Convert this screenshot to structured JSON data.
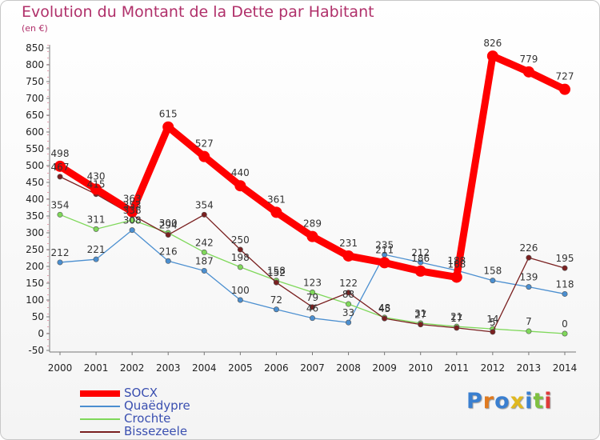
{
  "title": "Evolution du Montant de la Dette par Habitant",
  "subtitle": "(en €)",
  "logo_text": "Proxiti",
  "chart_data": {
    "type": "line",
    "x": [
      "2000",
      "2001",
      "2002",
      "2003",
      "2004",
      "2005",
      "2006",
      "2007",
      "2008",
      "2009",
      "2010",
      "2011",
      "2012",
      "2013",
      "2014"
    ],
    "ylim": [
      -50,
      850
    ],
    "yticks": [
      -50,
      0,
      50,
      100,
      150,
      200,
      250,
      300,
      350,
      400,
      450,
      500,
      550,
      600,
      650,
      700,
      750,
      800,
      850
    ],
    "grid": false,
    "legend_position": "bottom-left",
    "series": [
      {
        "name": "SOCX",
        "color": "#ff0000",
        "values": [
          498,
          430,
          363,
          615,
          527,
          440,
          361,
          289,
          231,
          211,
          186,
          168,
          826,
          779,
          727
        ]
      },
      {
        "name": "Quaëdypre",
        "color": "#4b8fd0",
        "values": [
          212,
          221,
          308,
          216,
          187,
          100,
          72,
          46,
          33,
          235,
          212,
          188,
          158,
          139,
          118
        ]
      },
      {
        "name": "Crochte",
        "color": "#7fd85a",
        "values": [
          354,
          311,
          338,
          300,
          242,
          198,
          158,
          123,
          88,
          48,
          31,
          21,
          14,
          7,
          0
        ]
      },
      {
        "name": "Bissezeele",
        "color": "#7a2020",
        "values": [
          467,
          415,
          353,
          294,
          354,
          250,
          152,
          79,
          122,
          45,
          27,
          17,
          5,
          226,
          195
        ]
      }
    ]
  }
}
